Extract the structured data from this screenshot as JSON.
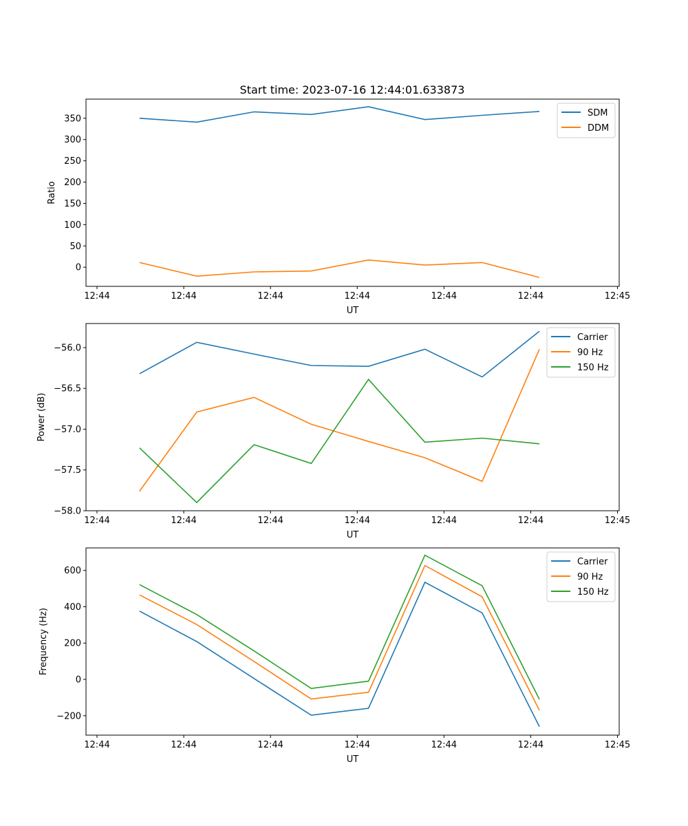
{
  "chart_data": [
    {
      "type": "line",
      "title": "Start time: 2023-07-16 12:44:01.633873",
      "xlabel": "UT",
      "ylabel": "Ratio",
      "x_units": "seconds after 12:44:00",
      "x": [
        4.9,
        11.5,
        18.1,
        24.7,
        31.3,
        37.8,
        44.4,
        51.0
      ],
      "xlim": [
        -1.27,
        60.2
      ],
      "xticks": [
        0,
        10,
        20,
        30,
        40,
        50,
        60
      ],
      "xtick_labels": [
        "12:44",
        "12:44",
        "12:44",
        "12:44",
        "12:44",
        "12:44",
        "12:45"
      ],
      "ylim": [
        -45,
        395
      ],
      "yticks": [
        0,
        50,
        100,
        150,
        200,
        250,
        300,
        350
      ],
      "ytick_labels": [
        "0",
        "50",
        "100",
        "150",
        "200",
        "250",
        "300",
        "350"
      ],
      "legend": "top-right",
      "series": [
        {
          "name": "SDM",
          "color": "#1f77b4",
          "values": [
            350,
            341,
            365,
            359,
            377,
            347,
            357,
            366
          ]
        },
        {
          "name": "DDM",
          "color": "#ff7f0e",
          "values": [
            11,
            -21,
            -11,
            -9,
            17,
            5,
            11,
            -24
          ]
        }
      ]
    },
    {
      "type": "line",
      "title": "",
      "xlabel": "UT",
      "ylabel": "Power (dB)",
      "x_units": "seconds after 12:44:00",
      "x": [
        4.9,
        11.5,
        18.1,
        24.7,
        31.3,
        37.8,
        44.4,
        51.0
      ],
      "xlim": [
        -1.27,
        60.2
      ],
      "xticks": [
        0,
        10,
        20,
        30,
        40,
        50,
        60
      ],
      "xtick_labels": [
        "12:44",
        "12:44",
        "12:44",
        "12:44",
        "12:44",
        "12:44",
        "12:45"
      ],
      "ylim": [
        -58.0,
        -55.705
      ],
      "yticks": [
        -58.0,
        -57.5,
        -57.0,
        -56.5,
        -56.0
      ],
      "ytick_labels": [
        "−58.0",
        "−57.5",
        "−57.0",
        "−56.5",
        "−56.0"
      ],
      "legend": "top-right",
      "series": [
        {
          "name": "Carrier",
          "color": "#1f77b4",
          "values": [
            -56.32,
            -55.935,
            -56.08,
            -56.22,
            -56.23,
            -56.02,
            -56.36,
            -55.8
          ]
        },
        {
          "name": "90 Hz",
          "color": "#ff7f0e",
          "values": [
            -57.76,
            -56.79,
            -56.61,
            -56.94,
            -57.15,
            -57.35,
            -57.64,
            -56.02
          ]
        },
        {
          "name": "150 Hz",
          "color": "#2ca02c",
          "values": [
            -57.23,
            -57.9,
            -57.19,
            -57.42,
            -56.39,
            -57.16,
            -57.11,
            -57.18
          ]
        }
      ]
    },
    {
      "type": "line",
      "title": "",
      "xlabel": "UT",
      "ylabel": "Frequency (Hz)",
      "x_units": "seconds after 12:44:00",
      "x": [
        4.9,
        11.5,
        18.1,
        24.7,
        31.3,
        37.8,
        44.4,
        51.0
      ],
      "xlim": [
        -1.27,
        60.2
      ],
      "xticks": [
        0,
        10,
        20,
        30,
        40,
        50,
        60
      ],
      "xtick_labels": [
        "12:44",
        "12:44",
        "12:44",
        "12:44",
        "12:44",
        "12:44",
        "12:45"
      ],
      "ylim": [
        -307,
        724
      ],
      "yticks": [
        -200,
        0,
        200,
        400,
        600
      ],
      "ytick_labels": [
        "−200",
        "0",
        "200",
        "400",
        "600"
      ],
      "legend": "top-right",
      "series": [
        {
          "name": "Carrier",
          "color": "#1f77b4",
          "values": [
            376,
            208,
            5,
            -197,
            -159,
            535,
            366,
            -260
          ]
        },
        {
          "name": "90 Hz",
          "color": "#ff7f0e",
          "values": [
            465,
            302,
            99,
            -108,
            -71,
            627,
            455,
            -170
          ]
        },
        {
          "name": "150 Hz",
          "color": "#2ca02c",
          "values": [
            522,
            357,
            157,
            -50,
            -10,
            684,
            516,
            -110
          ]
        }
      ]
    }
  ]
}
